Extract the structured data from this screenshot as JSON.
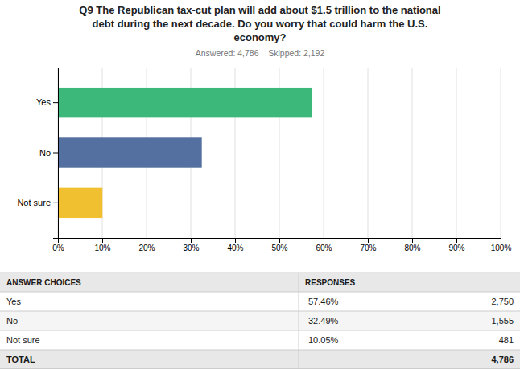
{
  "chart_data": {
    "type": "bar",
    "title": "Q9 The Republican tax-cut plan will add about $1.5 trillion to the national\ndebt during the next decade. Do you worry that could harm the U.S.\neconomy?",
    "subtitle": "Answered: 4,786    Skipped: 2,192",
    "orientation": "horizontal",
    "categories": [
      "Yes",
      "No",
      "Not sure"
    ],
    "values": [
      57.46,
      32.49,
      10.05
    ],
    "colors": [
      "#3cb87a",
      "#5470a0",
      "#f0c030"
    ],
    "xlim": [
      0,
      100
    ],
    "xticks": [
      {
        "value": 0,
        "label": "0%"
      },
      {
        "value": 10,
        "label": "10%"
      },
      {
        "value": 20,
        "label": "20%"
      },
      {
        "value": 30,
        "label": "30%"
      },
      {
        "value": 40,
        "label": "40%"
      },
      {
        "value": 50,
        "label": "50%"
      },
      {
        "value": 60,
        "label": "60%"
      },
      {
        "value": 70,
        "label": "70%"
      },
      {
        "value": 80,
        "label": "80%"
      },
      {
        "value": 90,
        "label": "90%"
      },
      {
        "value": 100,
        "label": "100%"
      }
    ],
    "grid": true
  },
  "table": {
    "header": [
      "ANSWER CHOICES",
      "RESPONSES"
    ],
    "rows": [
      {
        "label": "Yes",
        "percent": "57.46%",
        "count": "2,750"
      },
      {
        "label": "No",
        "percent": "32.49%",
        "count": "1,555"
      },
      {
        "label": "Not sure",
        "percent": "10.05%",
        "count": "481"
      },
      {
        "label": "TOTAL",
        "percent": null,
        "count": "4,786"
      }
    ]
  }
}
